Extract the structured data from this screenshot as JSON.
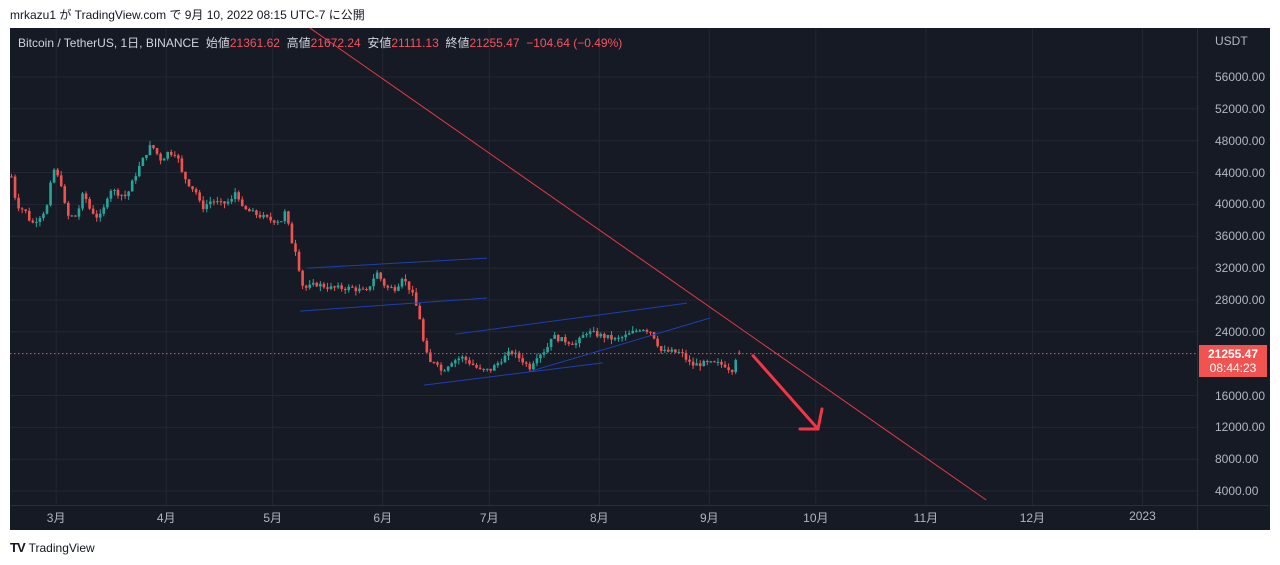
{
  "publish_line": "mrkazu1 が TradingView.com で 9月 10, 2022 08:15 UTC-7 に公開",
  "legend": {
    "symbol": "Bitcoin / TetherUS, 1日, BINANCE",
    "open_label": "始値",
    "open": "21361.62",
    "high_label": "高値",
    "high": "21672.24",
    "low_label": "安値",
    "low": "21111.13",
    "close_label": "終値",
    "close": "21255.47",
    "change": "−104.64 (−0.49%)"
  },
  "price_axis": {
    "currency": "USDT",
    "current_price": "21255.47",
    "countdown": "08:44:23"
  },
  "footer": {
    "brand": "TradingView"
  },
  "colors": {
    "up": "#26a69a",
    "down": "#ef5350",
    "trend_red": "#e53946",
    "channel_blue": "#1e3fb0",
    "background": "#161a25"
  },
  "chart_data": {
    "type": "candlestick",
    "title": "Bitcoin / TetherUS, 1日, BINANCE",
    "ylabel": "USDT",
    "ylim": [
      2000,
      60000
    ],
    "y_ticks": [
      "56000.00",
      "52000.00",
      "48000.00",
      "44000.00",
      "40000.00",
      "36000.00",
      "32000.00",
      "28000.00",
      "24000.00",
      "16000.00",
      "12000.00",
      "8000.00",
      "4000.00"
    ],
    "x_ticks": [
      {
        "label": "3月",
        "day": 13
      },
      {
        "label": "4月",
        "day": 44
      },
      {
        "label": "5月",
        "day": 74
      },
      {
        "label": "6月",
        "day": 105
      },
      {
        "label": "7月",
        "day": 135
      },
      {
        "label": "8月",
        "day": 166
      },
      {
        "label": "9月",
        "day": 197
      },
      {
        "label": "10月",
        "day": 227
      },
      {
        "label": "11月",
        "day": 258
      },
      {
        "label": "12月",
        "day": 288
      },
      {
        "label": "2023",
        "day": 319
      }
    ],
    "x_unit": "days since 2022-02-17",
    "close_anchors": [
      [
        0,
        43500
      ],
      [
        1.4,
        40000
      ],
      [
        4.2,
        39000
      ],
      [
        5.6,
        37500
      ],
      [
        7.9,
        38500
      ],
      [
        9.9,
        39500
      ],
      [
        11.8,
        44500
      ],
      [
        14.1,
        42500
      ],
      [
        15.5,
        38500
      ],
      [
        18.3,
        38500
      ],
      [
        20.3,
        41500
      ],
      [
        22,
        39500
      ],
      [
        24,
        38500
      ],
      [
        25.4,
        38500
      ],
      [
        27.6,
        42000
      ],
      [
        29.6,
        41500
      ],
      [
        32.4,
        41000
      ],
      [
        35.2,
        44000
      ],
      [
        38,
        46500
      ],
      [
        39.4,
        47500
      ],
      [
        40.8,
        46500
      ],
      [
        42.3,
        45500
      ],
      [
        43.7,
        46500
      ],
      [
        46.5,
        46500
      ],
      [
        47.9,
        44000
      ],
      [
        50.1,
        42500
      ],
      [
        52.1,
        41500
      ],
      [
        53.5,
        39500
      ],
      [
        56.3,
        40500
      ],
      [
        59.2,
        40000
      ],
      [
        62,
        40500
      ],
      [
        63.4,
        42000
      ],
      [
        64.8,
        39500
      ],
      [
        67.6,
        39000
      ],
      [
        70.4,
        38500
      ],
      [
        73.2,
        38000
      ],
      [
        76.1,
        38000
      ],
      [
        77.5,
        39500
      ],
      [
        78.3,
        36000
      ],
      [
        80.3,
        34000
      ],
      [
        81.7,
        30000
      ],
      [
        83.1,
        29500
      ],
      [
        85.9,
        30000
      ],
      [
        90.1,
        29500
      ],
      [
        95.8,
        29500
      ],
      [
        100,
        29000
      ],
      [
        102.8,
        31500
      ],
      [
        105.6,
        29500
      ],
      [
        108.5,
        29500
      ],
      [
        109.9,
        31000
      ],
      [
        112.7,
        29000
      ],
      [
        114.9,
        26000
      ],
      [
        116.1,
        22500
      ],
      [
        117.7,
        20000
      ],
      [
        119.7,
        20500
      ],
      [
        121.1,
        19000
      ],
      [
        123.9,
        20300
      ],
      [
        126.8,
        20800
      ],
      [
        129.6,
        20000
      ],
      [
        132.4,
        19000
      ],
      [
        135.2,
        19300
      ],
      [
        138,
        20500
      ],
      [
        140.8,
        21500
      ],
      [
        143.7,
        20500
      ],
      [
        145.9,
        19500
      ],
      [
        147.9,
        21000
      ],
      [
        150.7,
        21800
      ],
      [
        152.1,
        23500
      ],
      [
        154.9,
        23000
      ],
      [
        159.2,
        22500
      ],
      [
        162,
        24000
      ],
      [
        166.2,
        23500
      ],
      [
        170.4,
        23000
      ],
      [
        173.2,
        23500
      ],
      [
        177.5,
        24500
      ],
      [
        180.3,
        24000
      ],
      [
        183.1,
        21500
      ],
      [
        185.9,
        21500
      ],
      [
        188.7,
        21300
      ],
      [
        191.5,
        19800
      ],
      [
        194.4,
        20000
      ],
      [
        198.6,
        20000
      ],
      [
        201.4,
        19800
      ],
      [
        202.8,
        19000
      ],
      [
        204.2,
        21000
      ],
      [
        205.1,
        21255.47
      ]
    ],
    "last_candle": {
      "open": 21361.62,
      "high": 21672.24,
      "low": 21111.13,
      "close": 21255.47
    },
    "annotations": [
      {
        "type": "trendline",
        "color": "red",
        "from": [
          84.5,
          62150
        ],
        "to": [
          275,
          2875
        ]
      },
      {
        "type": "trendline",
        "color": "blue",
        "from": [
          83.7,
          32000
        ],
        "to": [
          134.4,
          33250
        ]
      },
      {
        "type": "trendline",
        "color": "blue",
        "from": [
          81.7,
          26600
        ],
        "to": [
          134.4,
          28250
        ]
      },
      {
        "type": "trendline",
        "color": "blue",
        "from": [
          125.4,
          23700
        ],
        "to": [
          190.7,
          27600
        ]
      },
      {
        "type": "trendline",
        "color": "blue",
        "from": [
          116.6,
          17300
        ],
        "to": [
          167,
          20100
        ]
      },
      {
        "type": "trendline",
        "color": "blue",
        "from": [
          145.9,
          18950
        ],
        "to": [
          197.2,
          25730
        ]
      },
      {
        "type": "arrow",
        "color": "red",
        "from": [
          209.3,
          21000
        ],
        "to": [
          227.6,
          11800
        ]
      }
    ]
  }
}
